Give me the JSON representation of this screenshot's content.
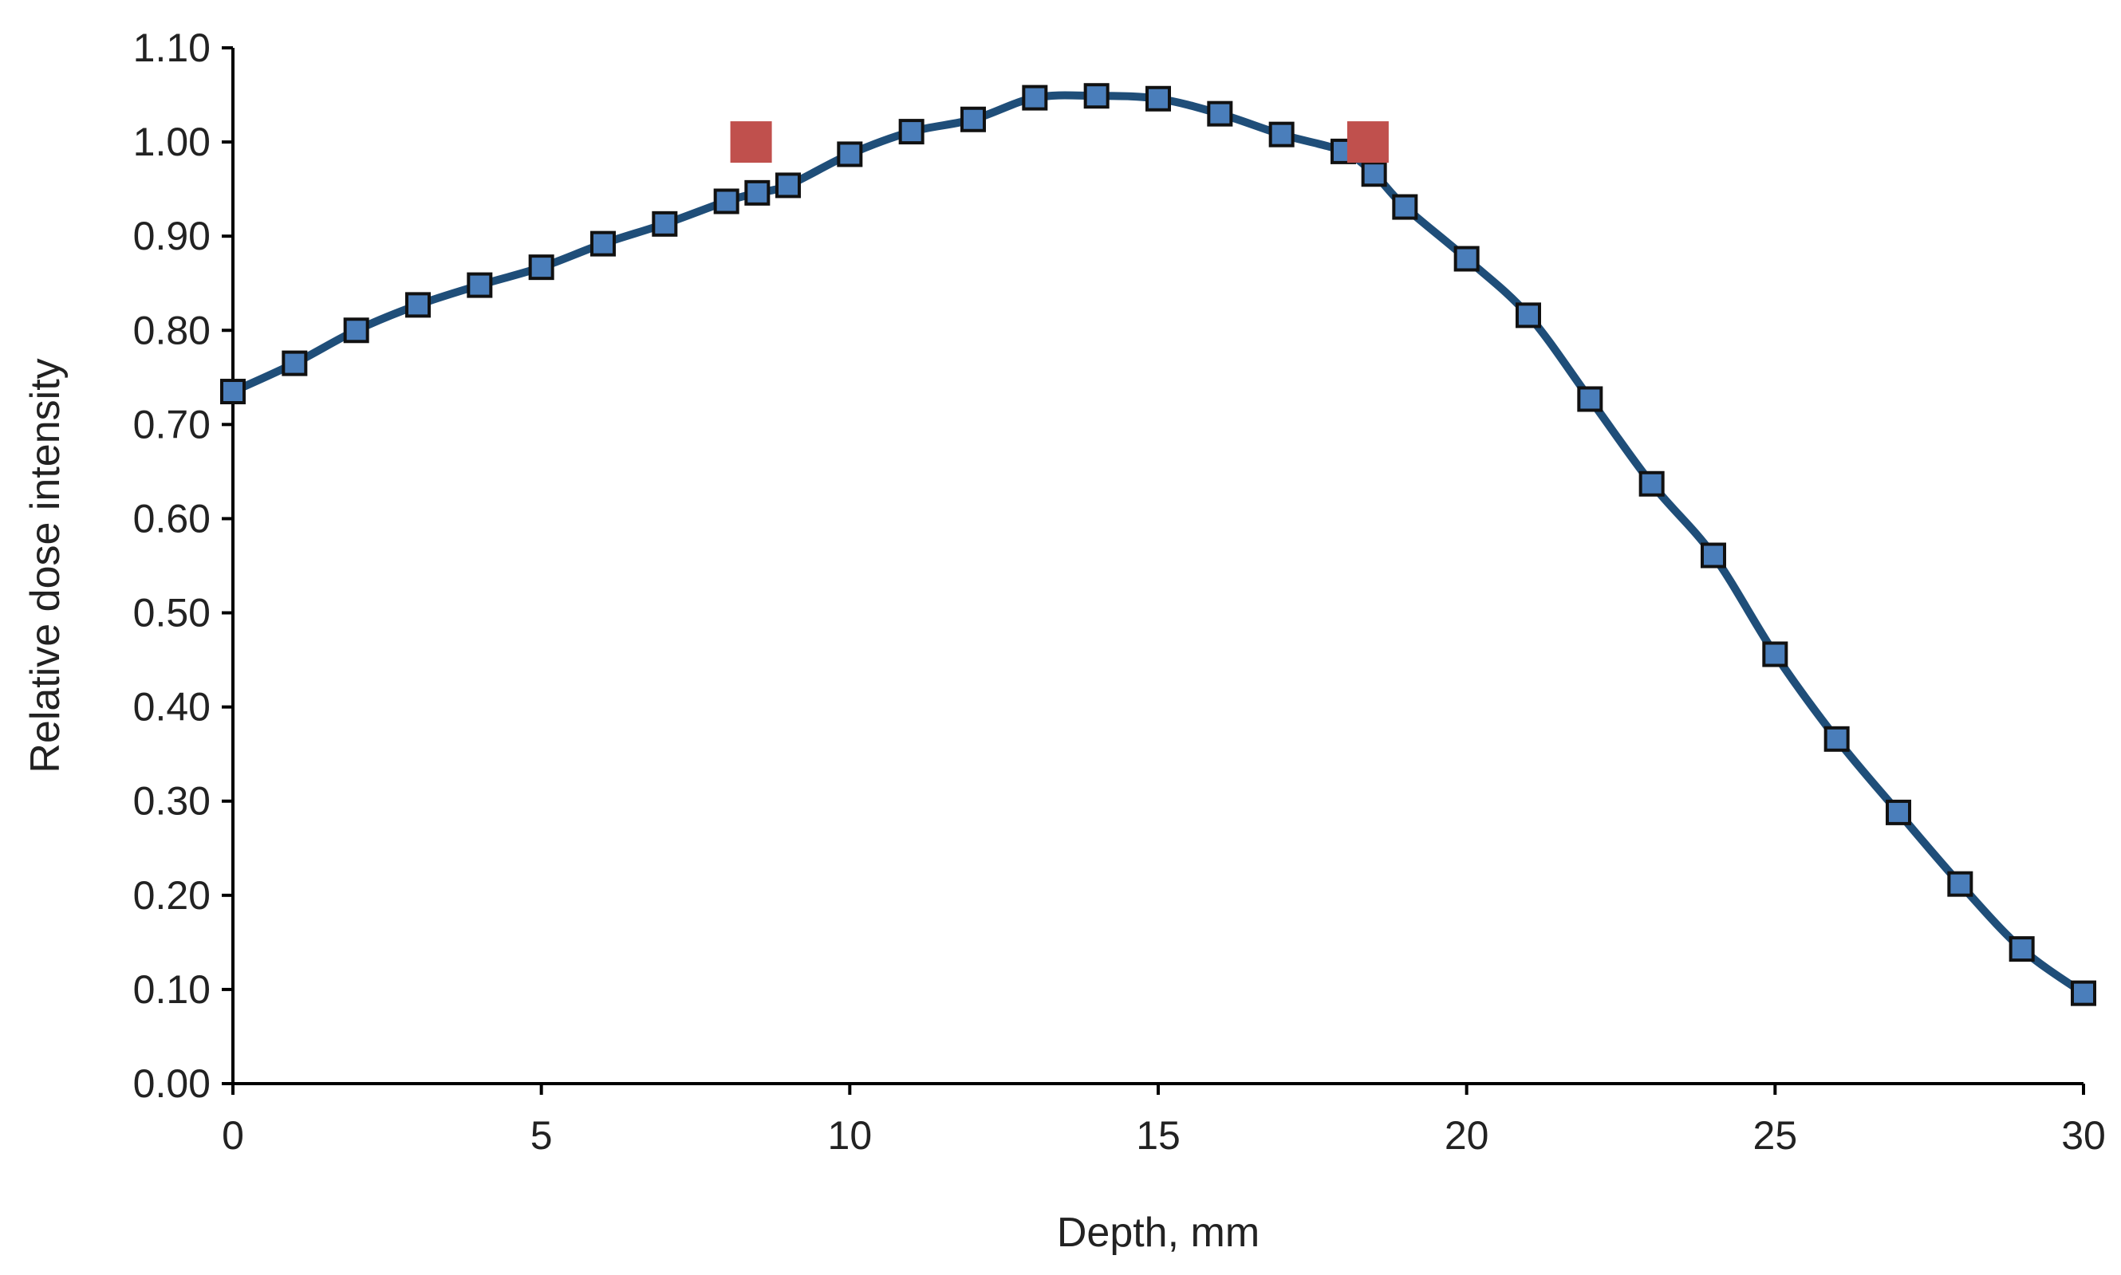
{
  "chart_data": {
    "type": "scatter",
    "title": "",
    "xlabel": "Depth, mm",
    "ylabel": "Relative dose intensity",
    "xlim": [
      0,
      30
    ],
    "ylim": [
      0,
      1.1
    ],
    "x_ticks": [
      "0",
      "5",
      "10",
      "15",
      "20",
      "25",
      "30"
    ],
    "y_ticks": [
      "0.00",
      "0.10",
      "0.20",
      "0.30",
      "0.40",
      "0.50",
      "0.60",
      "0.70",
      "0.80",
      "0.90",
      "1.00",
      "1.10"
    ],
    "grid": false,
    "legend": "none",
    "series": [
      {
        "style": "line-markers",
        "line_color": "#1f4e79",
        "marker_color": "#4a7ebb",
        "marker_shape": "square",
        "x": [
          0,
          1,
          2,
          3,
          4,
          5,
          6,
          7,
          8,
          8.5,
          9,
          10,
          11,
          12,
          13,
          14,
          15,
          16,
          17,
          18,
          18.5,
          19,
          20,
          21,
          22,
          23,
          24,
          25,
          26,
          27,
          28,
          29,
          30
        ],
        "y": [
          0.735,
          0.765,
          0.8,
          0.827,
          0.848,
          0.867,
          0.892,
          0.913,
          0.937,
          0.946,
          0.954,
          0.987,
          1.011,
          1.024,
          1.047,
          1.049,
          1.046,
          1.03,
          1.008,
          0.99,
          0.966,
          0.931,
          0.876,
          0.816,
          0.727,
          0.637,
          0.561,
          0.456,
          0.366,
          0.288,
          0.212,
          0.143,
          0.096
        ]
      },
      {
        "style": "markers",
        "marker_color": "#c0504d",
        "marker_shape": "square",
        "x": [
          8.4,
          18.4
        ],
        "y": [
          1.0,
          1.0
        ]
      }
    ]
  }
}
